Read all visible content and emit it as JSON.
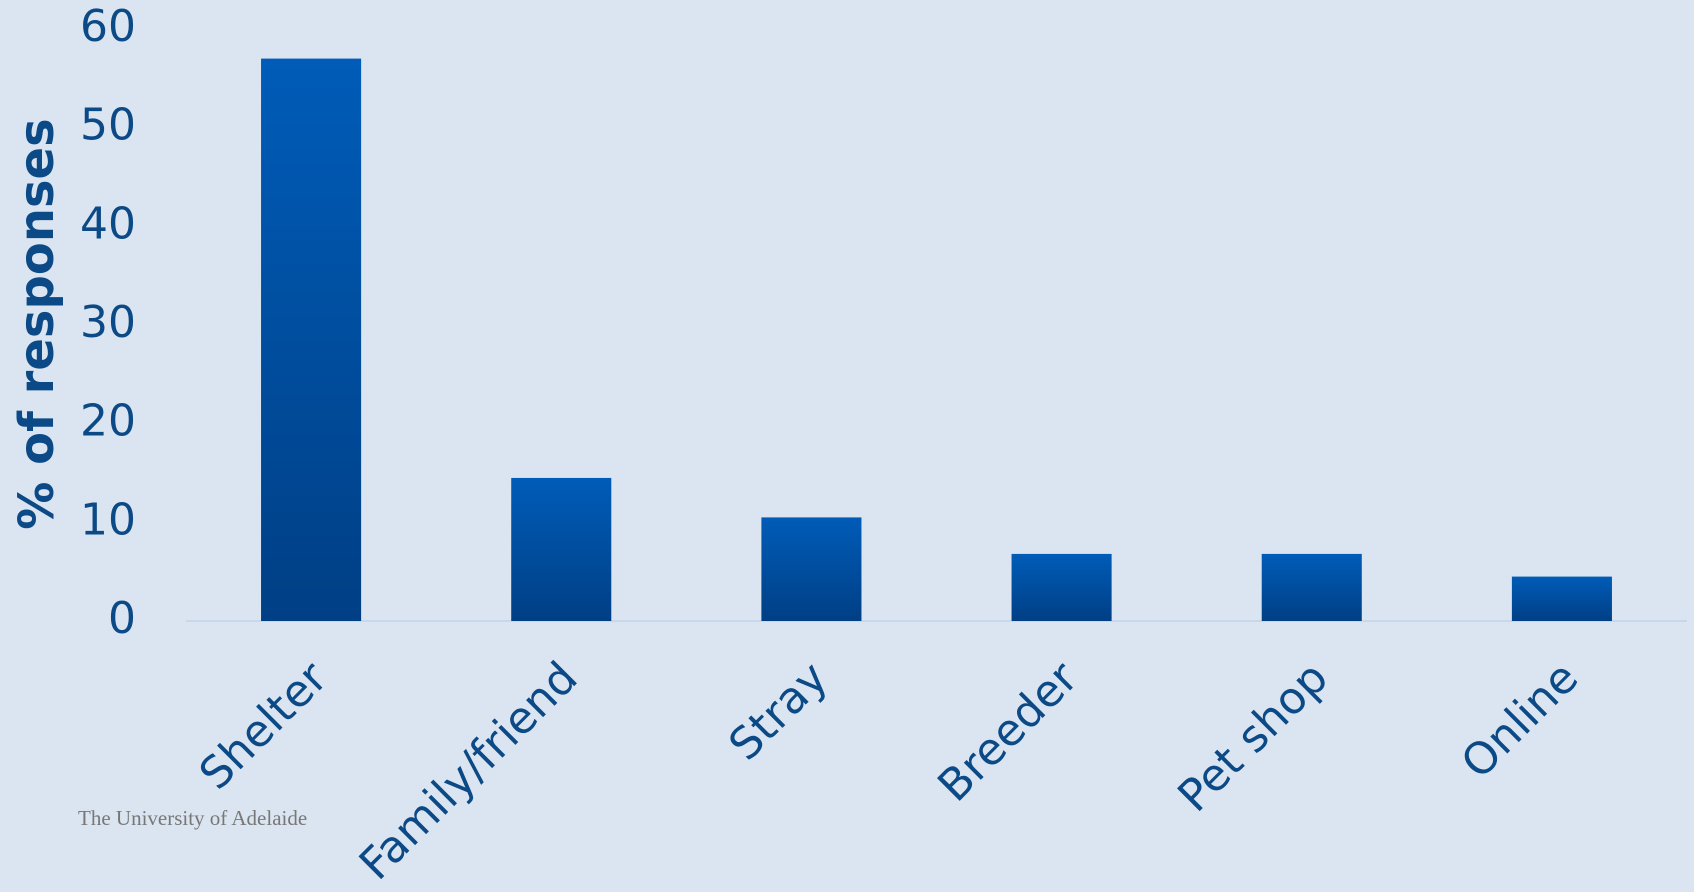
{
  "chart_data": {
    "type": "bar",
    "y_label": "% of responses",
    "categories": [
      "Shelter",
      "Family/friend",
      "Stray",
      "Breeder",
      "Pet shop",
      "Online"
    ],
    "values": [
      57,
      14.5,
      10.5,
      6.8,
      6.8,
      4.5
    ],
    "color": "#005cb8",
    "ylim": [
      0,
      60
    ],
    "yticks": [
      0,
      10,
      20,
      30,
      40,
      50,
      60
    ],
    "grid": false
  },
  "footer": "The University of Adelaide"
}
